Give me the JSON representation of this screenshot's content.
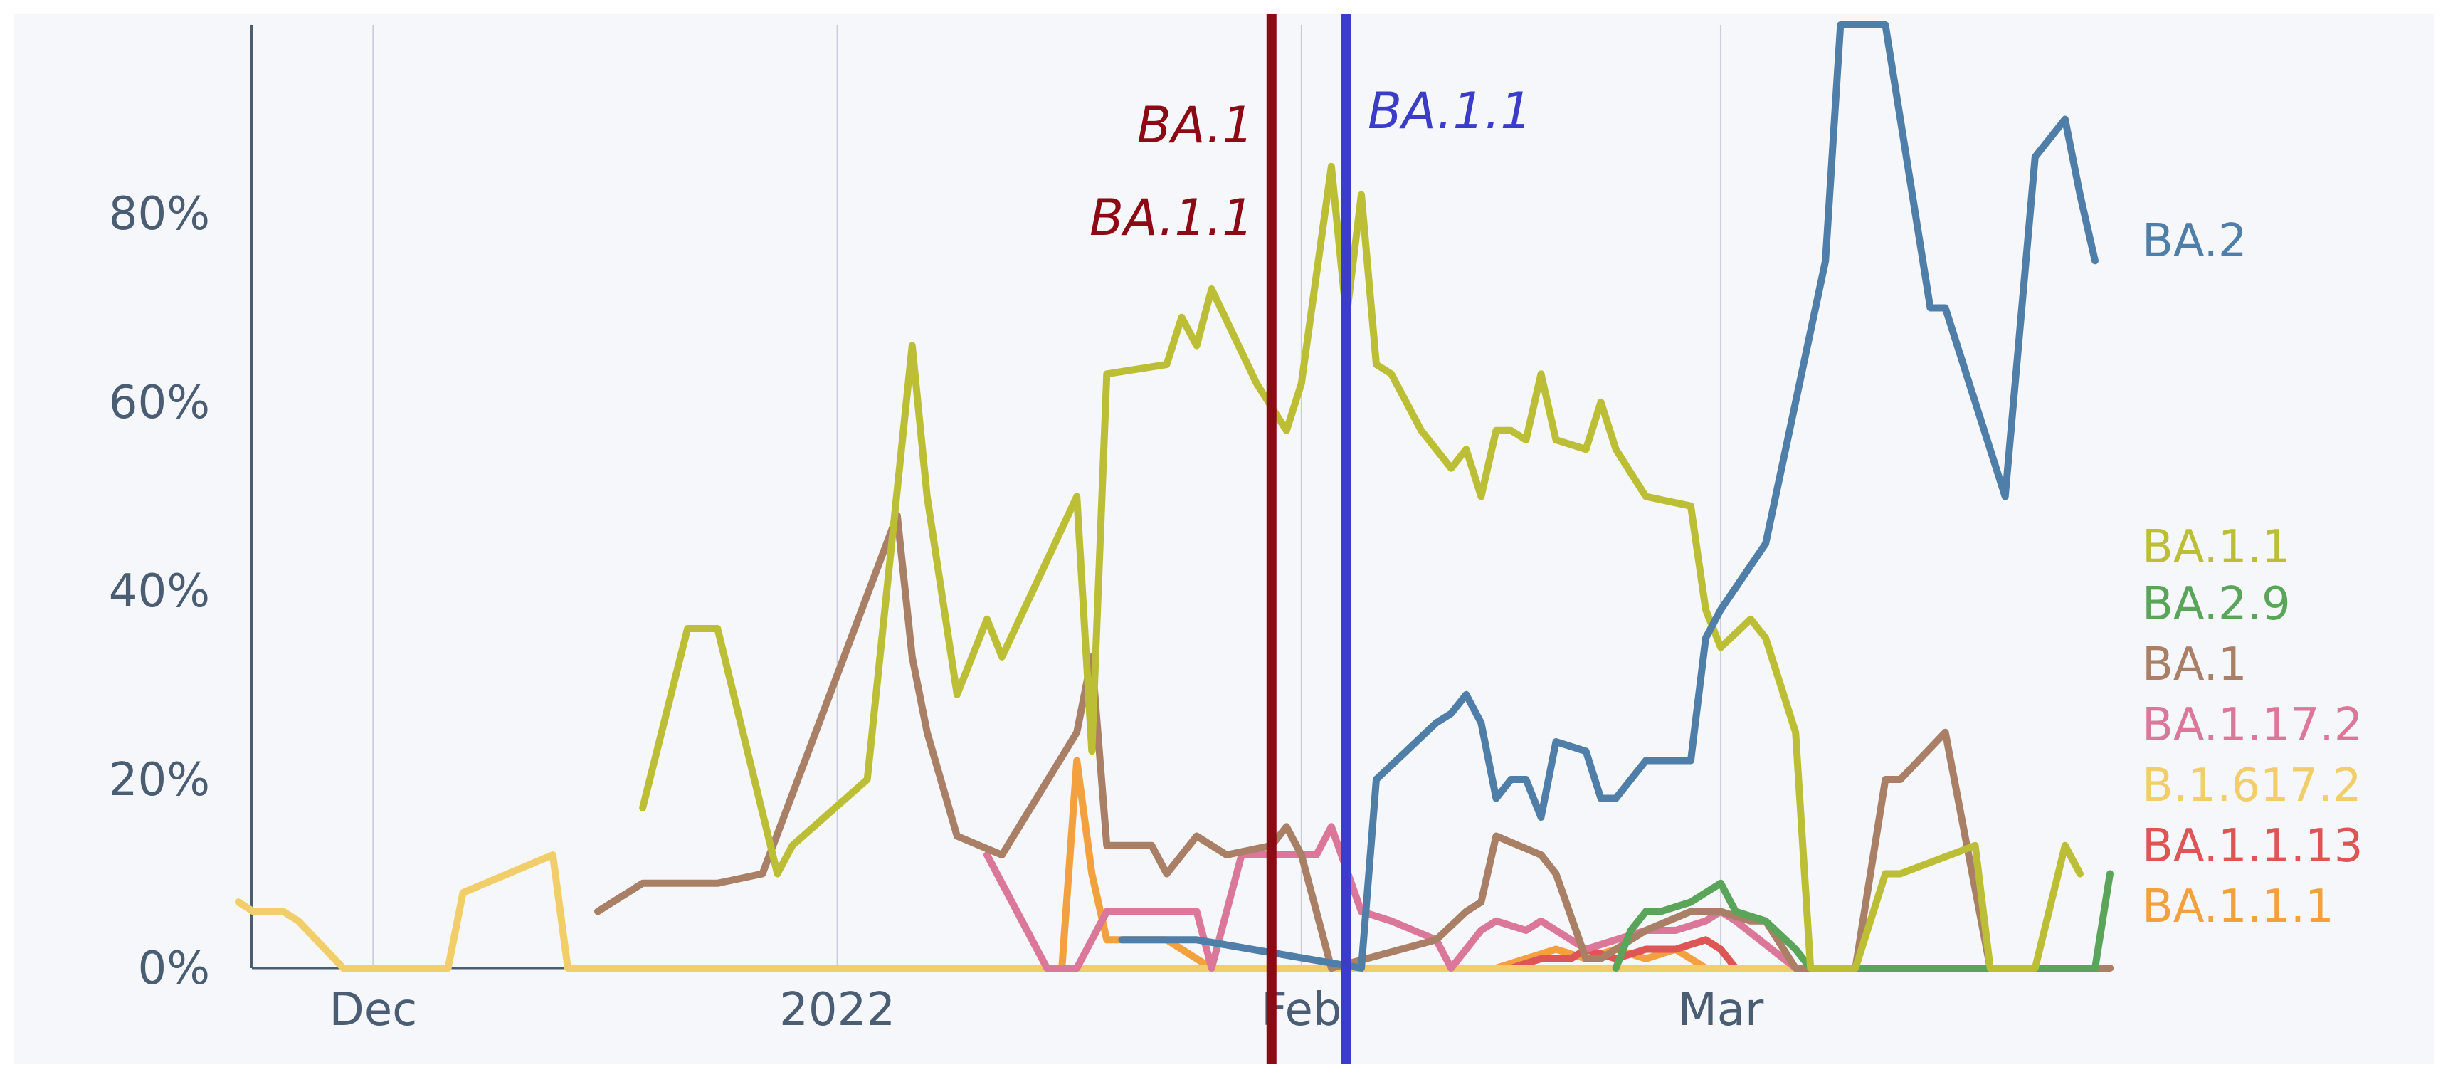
{
  "chart_data": {
    "type": "line",
    "title": "",
    "xlabel": "",
    "ylabel": "",
    "x_axis": {
      "start_date": "2021-11-22",
      "end_date": "2022-03-27",
      "tick_labels": [
        {
          "date": "2021-12-01",
          "label": "Dec"
        },
        {
          "date": "2022-01-01",
          "label": "2022"
        },
        {
          "date": "2022-02-01",
          "label": "Feb"
        },
        {
          "date": "2022-03-01",
          "label": "Mar"
        }
      ]
    },
    "y_axis": {
      "ylim": [
        0,
        100
      ],
      "format": "percent",
      "ticks": [
        {
          "value": 0,
          "label": "0%"
        },
        {
          "value": 20,
          "label": "20%"
        },
        {
          "value": 40,
          "label": "40%"
        },
        {
          "value": 60,
          "label": "60%"
        },
        {
          "value": 80,
          "label": "80%"
        }
      ]
    },
    "grid": "vertical",
    "legend_placement": "right",
    "markers": [
      {
        "date": "2022-01-30",
        "labels": [
          "BA.1",
          "BA.1.1"
        ],
        "color": "#8b0a14"
      },
      {
        "date": "2022-02-04",
        "labels": [
          "BA.1.1"
        ],
        "color": "#3b3dc9"
      }
    ],
    "series": [
      {
        "name": "BA.2",
        "color": "#4f7fa8",
        "points": [
          [
            "2022-01-20",
            3
          ],
          [
            "2022-01-25",
            3
          ],
          [
            "2022-02-05",
            0
          ],
          [
            "2022-02-06",
            20
          ],
          [
            "2022-02-08",
            23
          ],
          [
            "2022-02-10",
            26
          ],
          [
            "2022-02-11",
            27
          ],
          [
            "2022-02-12",
            29
          ],
          [
            "2022-02-13",
            26
          ],
          [
            "2022-02-14",
            18
          ],
          [
            "2022-02-15",
            20
          ],
          [
            "2022-02-16",
            20
          ],
          [
            "2022-02-17",
            16
          ],
          [
            "2022-02-18",
            24
          ],
          [
            "2022-02-20",
            23
          ],
          [
            "2022-02-21",
            18
          ],
          [
            "2022-02-22",
            18
          ],
          [
            "2022-02-24",
            22
          ],
          [
            "2022-02-27",
            22
          ],
          [
            "2022-02-28",
            35
          ],
          [
            "2022-03-01",
            38
          ],
          [
            "2022-03-04",
            45
          ],
          [
            "2022-03-08",
            75
          ],
          [
            "2022-03-09",
            100
          ],
          [
            "2022-03-12",
            100
          ],
          [
            "2022-03-15",
            70
          ],
          [
            "2022-03-16",
            70
          ],
          [
            "2022-03-20",
            50
          ],
          [
            "2022-03-22",
            86
          ],
          [
            "2022-03-24",
            90
          ],
          [
            "2022-03-25",
            82
          ],
          [
            "2022-03-26",
            75
          ]
        ]
      },
      {
        "name": "BA.1.1",
        "color": "#bcbf35",
        "points": [
          [
            "2021-12-19",
            17
          ],
          [
            "2021-12-22",
            36
          ],
          [
            "2021-12-24",
            36
          ],
          [
            "2021-12-28",
            10
          ],
          [
            "2021-12-29",
            13
          ],
          [
            "2022-01-03",
            20
          ],
          [
            "2022-01-06",
            66
          ],
          [
            "2022-01-07",
            50
          ],
          [
            "2022-01-09",
            29
          ],
          [
            "2022-01-11",
            37
          ],
          [
            "2022-01-12",
            33
          ],
          [
            "2022-01-17",
            50
          ],
          [
            "2022-01-18",
            23
          ],
          [
            "2022-01-19",
            63
          ],
          [
            "2022-01-23",
            64
          ],
          [
            "2022-01-24",
            69
          ],
          [
            "2022-01-25",
            66
          ],
          [
            "2022-01-26",
            72
          ],
          [
            "2022-01-29",
            62
          ],
          [
            "2022-01-31",
            57
          ],
          [
            "2022-02-01",
            62
          ],
          [
            "2022-02-03",
            85
          ],
          [
            "2022-02-04",
            69
          ],
          [
            "2022-02-05",
            82
          ],
          [
            "2022-02-06",
            64
          ],
          [
            "2022-02-07",
            63
          ],
          [
            "2022-02-09",
            57
          ],
          [
            "2022-02-11",
            53
          ],
          [
            "2022-02-12",
            55
          ],
          [
            "2022-02-13",
            50
          ],
          [
            "2022-02-14",
            57
          ],
          [
            "2022-02-15",
            57
          ],
          [
            "2022-02-16",
            56
          ],
          [
            "2022-02-17",
            63
          ],
          [
            "2022-02-18",
            56
          ],
          [
            "2022-02-20",
            55
          ],
          [
            "2022-02-21",
            60
          ],
          [
            "2022-02-22",
            55
          ],
          [
            "2022-02-24",
            50
          ],
          [
            "2022-02-27",
            49
          ],
          [
            "2022-02-28",
            38
          ],
          [
            "2022-03-01",
            34
          ],
          [
            "2022-03-03",
            37
          ],
          [
            "2022-03-04",
            35
          ],
          [
            "2022-03-06",
            25
          ],
          [
            "2022-03-07",
            0
          ],
          [
            "2022-03-10",
            0
          ],
          [
            "2022-03-12",
            10
          ],
          [
            "2022-03-13",
            10
          ],
          [
            "2022-03-18",
            13
          ],
          [
            "2022-03-19",
            0
          ],
          [
            "2022-03-22",
            0
          ],
          [
            "2022-03-24",
            13
          ],
          [
            "2022-03-25",
            10
          ]
        ]
      },
      {
        "name": "BA.2.9",
        "color": "#5ba55b",
        "points": [
          [
            "2022-02-22",
            0
          ],
          [
            "2022-02-23",
            4
          ],
          [
            "2022-02-24",
            6
          ],
          [
            "2022-02-25",
            6
          ],
          [
            "2022-02-27",
            7
          ],
          [
            "2022-02-28",
            8
          ],
          [
            "2022-03-01",
            9
          ],
          [
            "2022-03-02",
            6
          ],
          [
            "2022-03-04",
            5
          ],
          [
            "2022-03-06",
            2
          ],
          [
            "2022-03-07",
            0
          ],
          [
            "2022-03-26",
            0
          ],
          [
            "2022-03-27",
            10
          ]
        ]
      },
      {
        "name": "BA.1",
        "color": "#a97f66",
        "points": [
          [
            "2021-12-16",
            6
          ],
          [
            "2021-12-19",
            9
          ],
          [
            "2021-12-24",
            9
          ],
          [
            "2021-12-27",
            10
          ],
          [
            "2022-01-05",
            48
          ],
          [
            "2022-01-06",
            33
          ],
          [
            "2022-01-07",
            25
          ],
          [
            "2022-01-09",
            14
          ],
          [
            "2022-01-12",
            12
          ],
          [
            "2022-01-17",
            25
          ],
          [
            "2022-01-18",
            33
          ],
          [
            "2022-01-19",
            13
          ],
          [
            "2022-01-22",
            13
          ],
          [
            "2022-01-23",
            10
          ],
          [
            "2022-01-25",
            14
          ],
          [
            "2022-01-27",
            12
          ],
          [
            "2022-01-30",
            13
          ],
          [
            "2022-01-31",
            15
          ],
          [
            "2022-02-01",
            12
          ],
          [
            "2022-02-03",
            0
          ],
          [
            "2022-02-10",
            3
          ],
          [
            "2022-02-12",
            6
          ],
          [
            "2022-02-13",
            7
          ],
          [
            "2022-02-14",
            14
          ],
          [
            "2022-02-17",
            12
          ],
          [
            "2022-02-18",
            10
          ],
          [
            "2022-02-20",
            1
          ],
          [
            "2022-02-21",
            1
          ],
          [
            "2022-02-24",
            4
          ],
          [
            "2022-02-27",
            6
          ],
          [
            "2022-03-01",
            6
          ],
          [
            "2022-03-03",
            5
          ],
          [
            "2022-03-04",
            5
          ],
          [
            "2022-03-06",
            0
          ],
          [
            "2022-03-10",
            0
          ],
          [
            "2022-03-12",
            20
          ],
          [
            "2022-03-13",
            20
          ],
          [
            "2022-03-16",
            25
          ],
          [
            "2022-03-19",
            0
          ],
          [
            "2022-03-27",
            0
          ]
        ]
      },
      {
        "name": "BA.1.17.2",
        "color": "#db7799",
        "points": [
          [
            "2022-01-11",
            12
          ],
          [
            "2022-01-15",
            0
          ],
          [
            "2022-01-17",
            0
          ],
          [
            "2022-01-19",
            6
          ],
          [
            "2022-01-22",
            6
          ],
          [
            "2022-01-25",
            6
          ],
          [
            "2022-01-26",
            0
          ],
          [
            "2022-01-28",
            12
          ],
          [
            "2022-02-02",
            12
          ],
          [
            "2022-02-03",
            15
          ],
          [
            "2022-02-05",
            6
          ],
          [
            "2022-02-07",
            5
          ],
          [
            "2022-02-10",
            3
          ],
          [
            "2022-02-11",
            0
          ],
          [
            "2022-02-13",
            4
          ],
          [
            "2022-02-14",
            5
          ],
          [
            "2022-02-16",
            4
          ],
          [
            "2022-02-17",
            5
          ],
          [
            "2022-02-18",
            4
          ],
          [
            "2022-02-20",
            2
          ],
          [
            "2022-02-22",
            3
          ],
          [
            "2022-02-24",
            4
          ],
          [
            "2022-02-26",
            4
          ],
          [
            "2022-02-28",
            5
          ],
          [
            "2022-03-01",
            6
          ],
          [
            "2022-03-02",
            5
          ],
          [
            "2022-03-06",
            0
          ],
          [
            "2022-03-27",
            0
          ]
        ]
      },
      {
        "name": "B.1.617.2",
        "color": "#f2ce6b",
        "points": [
          [
            "2021-11-22",
            7
          ],
          [
            "2021-11-23",
            6
          ],
          [
            "2021-11-25",
            6
          ],
          [
            "2021-11-26",
            5
          ],
          [
            "2021-11-29",
            0
          ],
          [
            "2021-12-06",
            0
          ],
          [
            "2021-12-07",
            8
          ],
          [
            "2021-12-10",
            10
          ],
          [
            "2021-12-13",
            12
          ],
          [
            "2021-12-14",
            0
          ],
          [
            "2022-03-27",
            0
          ]
        ]
      },
      {
        "name": "BA.1.1.13",
        "color": "#dd5555",
        "points": [
          [
            "2022-02-15",
            0
          ],
          [
            "2022-02-17",
            1
          ],
          [
            "2022-02-19",
            1
          ],
          [
            "2022-02-20",
            2
          ],
          [
            "2022-02-22",
            1
          ],
          [
            "2022-02-24",
            2
          ],
          [
            "2022-02-26",
            2
          ],
          [
            "2022-02-28",
            3
          ],
          [
            "2022-03-01",
            2
          ],
          [
            "2022-03-02",
            0
          ],
          [
            "2022-03-27",
            0
          ]
        ]
      },
      {
        "name": "BA.1.1.1",
        "color": "#f2a13e",
        "points": [
          [
            "2022-01-16",
            0
          ],
          [
            "2022-01-17",
            22
          ],
          [
            "2022-01-18",
            10
          ],
          [
            "2022-01-19",
            3
          ],
          [
            "2022-01-23",
            3
          ],
          [
            "2022-01-25",
            1
          ],
          [
            "2022-01-26",
            0
          ],
          [
            "2022-02-14",
            0
          ],
          [
            "2022-02-16",
            1
          ],
          [
            "2022-02-18",
            2
          ],
          [
            "2022-02-20",
            1
          ],
          [
            "2022-02-22",
            2
          ],
          [
            "2022-02-24",
            1
          ],
          [
            "2022-02-26",
            2
          ],
          [
            "2022-02-27",
            1
          ],
          [
            "2022-02-28",
            0
          ],
          [
            "2022-03-27",
            0
          ]
        ]
      }
    ],
    "legend": [
      {
        "series": "BA.2",
        "color": "#4f7fa8"
      },
      {
        "series": "BA.1.1",
        "color": "#bcbf35"
      },
      {
        "series": "BA.2.9",
        "color": "#5ba55b"
      },
      {
        "series": "BA.1",
        "color": "#a97f66"
      },
      {
        "series": "BA.1.17.2",
        "color": "#db7799"
      },
      {
        "series": "B.1.617.2",
        "color": "#f2ce6b"
      },
      {
        "series": "BA.1.1.13",
        "color": "#dd5555"
      },
      {
        "series": "BA.1.1.1",
        "color": "#f2a13e"
      }
    ]
  }
}
